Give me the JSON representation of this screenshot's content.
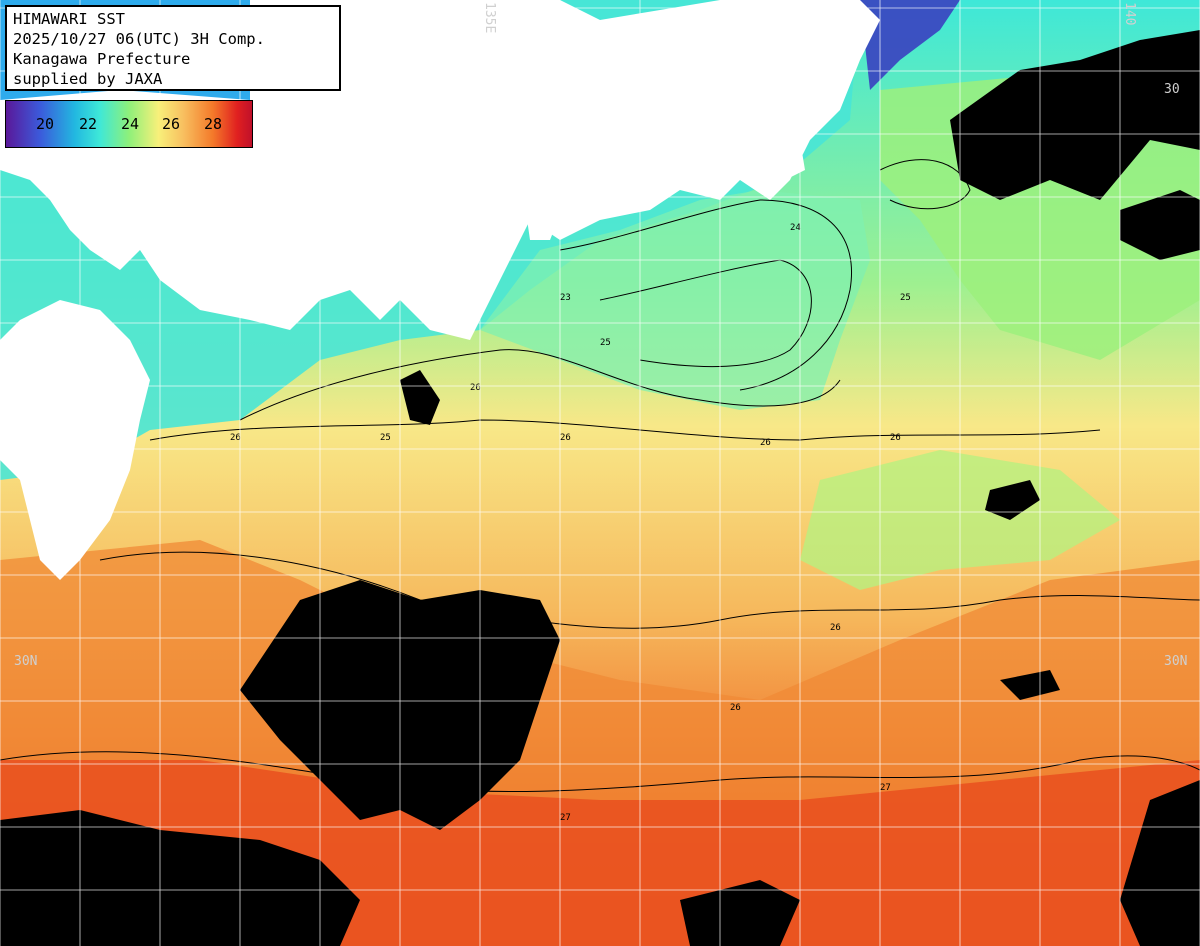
{
  "header": {
    "title": "HIMAWARI SST",
    "datetime": "2025/10/27 06(UTC) 3H Comp.",
    "region": "Kanagawa Prefecture",
    "credit": "supplied by JAXA"
  },
  "legend": {
    "labels": [
      "20",
      "22",
      "24",
      "26",
      "28"
    ]
  },
  "graticule": {
    "lat_left": "30N",
    "lat_right": "30N",
    "lat_top_right": "30",
    "lon_top": "135E",
    "lon_top_right": "140"
  },
  "contour_labels": [
    "23",
    "24",
    "25",
    "26",
    "27"
  ],
  "colors": {
    "land": "#ffffff",
    "cloud": "#000000",
    "grid": "#ffffff",
    "sst_20": "#3b5bdb",
    "sst_22": "#3ee8d8",
    "sst_24": "#a8f07a",
    "sst_26": "#f8d878",
    "sst_28": "#e8401a"
  }
}
